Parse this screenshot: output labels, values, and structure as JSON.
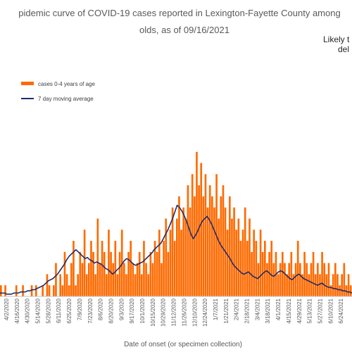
{
  "chart_data": {
    "type": "bar",
    "title_line1": "pidemic curve of COVID-19 cases reported in Lexington-Fayette County among",
    "title_line2": "olds, as of 09/16/2021",
    "note_line1": "Likely t",
    "note_line2": "del",
    "xlabel": "Date of onset (or specimen collection)",
    "ylabel": "",
    "legend": {
      "placement": "top-left"
    },
    "grid": false,
    "colors": {
      "bars": "#FF6A00",
      "line": "#1F2D6B"
    },
    "series": [
      {
        "name": "cases 0-4 years of age",
        "type": "bar"
      },
      {
        "name": "7 day moving average",
        "type": "line"
      }
    ],
    "x_tick_labels": [
      "4/2/2020",
      "4/16/2020",
      "4/30/2020",
      "5/14/2020",
      "5/28/2020",
      "6/11/2020",
      "6/25/2020",
      "7/9/2020",
      "7/23/2020",
      "8/6/2020",
      "8/20/2020",
      "9/3/2020",
      "9/17/2020",
      "10/1/2020",
      "10/15/2020",
      "10/29/2020",
      "11/12/2020",
      "11/26/2020",
      "12/10/2020",
      "12/24/2020",
      "1/7/2021",
      "1/21/2021",
      "2/4/2021",
      "2/18/2021",
      "3/4/2021",
      "3/18/2021",
      "4/1/2021",
      "4/15/2021",
      "4/29/2021",
      "5/13/2021",
      "5/27/2021",
      "6/10/2021",
      "6/24/2021"
    ],
    "bars_sampled": [
      1,
      0,
      1,
      0,
      0,
      0,
      0,
      1,
      0,
      0,
      1,
      0,
      0,
      0,
      1,
      0,
      1,
      0,
      0,
      1,
      0,
      2,
      1,
      0,
      1,
      3,
      0,
      2,
      1,
      4,
      2,
      1,
      3,
      5,
      1,
      2,
      4,
      3,
      6,
      2,
      3,
      5,
      4,
      2,
      7,
      3,
      5,
      4,
      2,
      6,
      4,
      3,
      5,
      2,
      4,
      6,
      3,
      2,
      4,
      5,
      3,
      2,
      3,
      4,
      2,
      5,
      3,
      2,
      4,
      3,
      5,
      4,
      6,
      3,
      5,
      7,
      4,
      6,
      8,
      5,
      7,
      9,
      6,
      8,
      7,
      10,
      8,
      11,
      9,
      13,
      10,
      12,
      9,
      11,
      8,
      10,
      9,
      8,
      11,
      7,
      9,
      10,
      8,
      6,
      9,
      7,
      8,
      6,
      7,
      5,
      6,
      8,
      5,
      7,
      4,
      6,
      5,
      3,
      6,
      4,
      5,
      3,
      4,
      5,
      3,
      4,
      2,
      3,
      4,
      3,
      2,
      3,
      4,
      2,
      3,
      5,
      3,
      2,
      4,
      3,
      2,
      3,
      4,
      2,
      3,
      2,
      4,
      3,
      2,
      3,
      1,
      2,
      3,
      2,
      1,
      2,
      3,
      1,
      2,
      1
    ],
    "ma_sampled": [
      0.3,
      0.3,
      0.3,
      0.2,
      0.2,
      0.2,
      0.3,
      0.3,
      0.3,
      0.4,
      0.4,
      0.4,
      0.5,
      0.5,
      0.6,
      0.6,
      0.7,
      0.8,
      0.9,
      1.0,
      1.2,
      1.4,
      1.5,
      1.6,
      1.8,
      2.0,
      2.3,
      2.6,
      2.9,
      3.3,
      3.6,
      3.8,
      4.0,
      4.2,
      4.0,
      3.8,
      3.6,
      3.4,
      3.5,
      3.3,
      3.2,
      3.0,
      3.1,
      3.0,
      2.9,
      2.7,
      2.5,
      2.4,
      2.2,
      2.0,
      2.2,
      2.4,
      2.6,
      2.9,
      3.2,
      3.4,
      3.3,
      3.1,
      2.9,
      2.8,
      2.9,
      3.0,
      3.1,
      3.3,
      3.5,
      3.7,
      3.9,
      4.2,
      4.4,
      4.6,
      4.8,
      5.2,
      5.6,
      6.0,
      6.5,
      7.0,
      7.6,
      8.2,
      8.0,
      7.7,
      7.3,
      6.8,
      6.2,
      5.6,
      5.2,
      5.5,
      5.9,
      6.4,
      6.8,
      7.0,
      7.2,
      6.9,
      6.5,
      6.0,
      5.5,
      5.0,
      4.6,
      4.3,
      4.0,
      3.7,
      3.4,
      3.0,
      2.7,
      2.5,
      2.3,
      2.1,
      2.0,
      2.1,
      2.2,
      2.0,
      1.8,
      1.7,
      1.6,
      1.8,
      2.0,
      2.2,
      2.3,
      2.1,
      1.9,
      1.8,
      2.0,
      2.2,
      2.3,
      2.2,
      2.0,
      1.8,
      1.6,
      1.5,
      1.7,
      1.9,
      2.0,
      1.8,
      1.6,
      1.5,
      1.4,
      1.3,
      1.2,
      1.1,
      1.0,
      1.1,
      1.2,
      1.0,
      0.9,
      0.8,
      0.8,
      0.7,
      0.7,
      0.6,
      0.6,
      0.5,
      0.5,
      0.4,
      0.4,
      0.3
    ],
    "ylim": [
      0,
      14
    ]
  }
}
